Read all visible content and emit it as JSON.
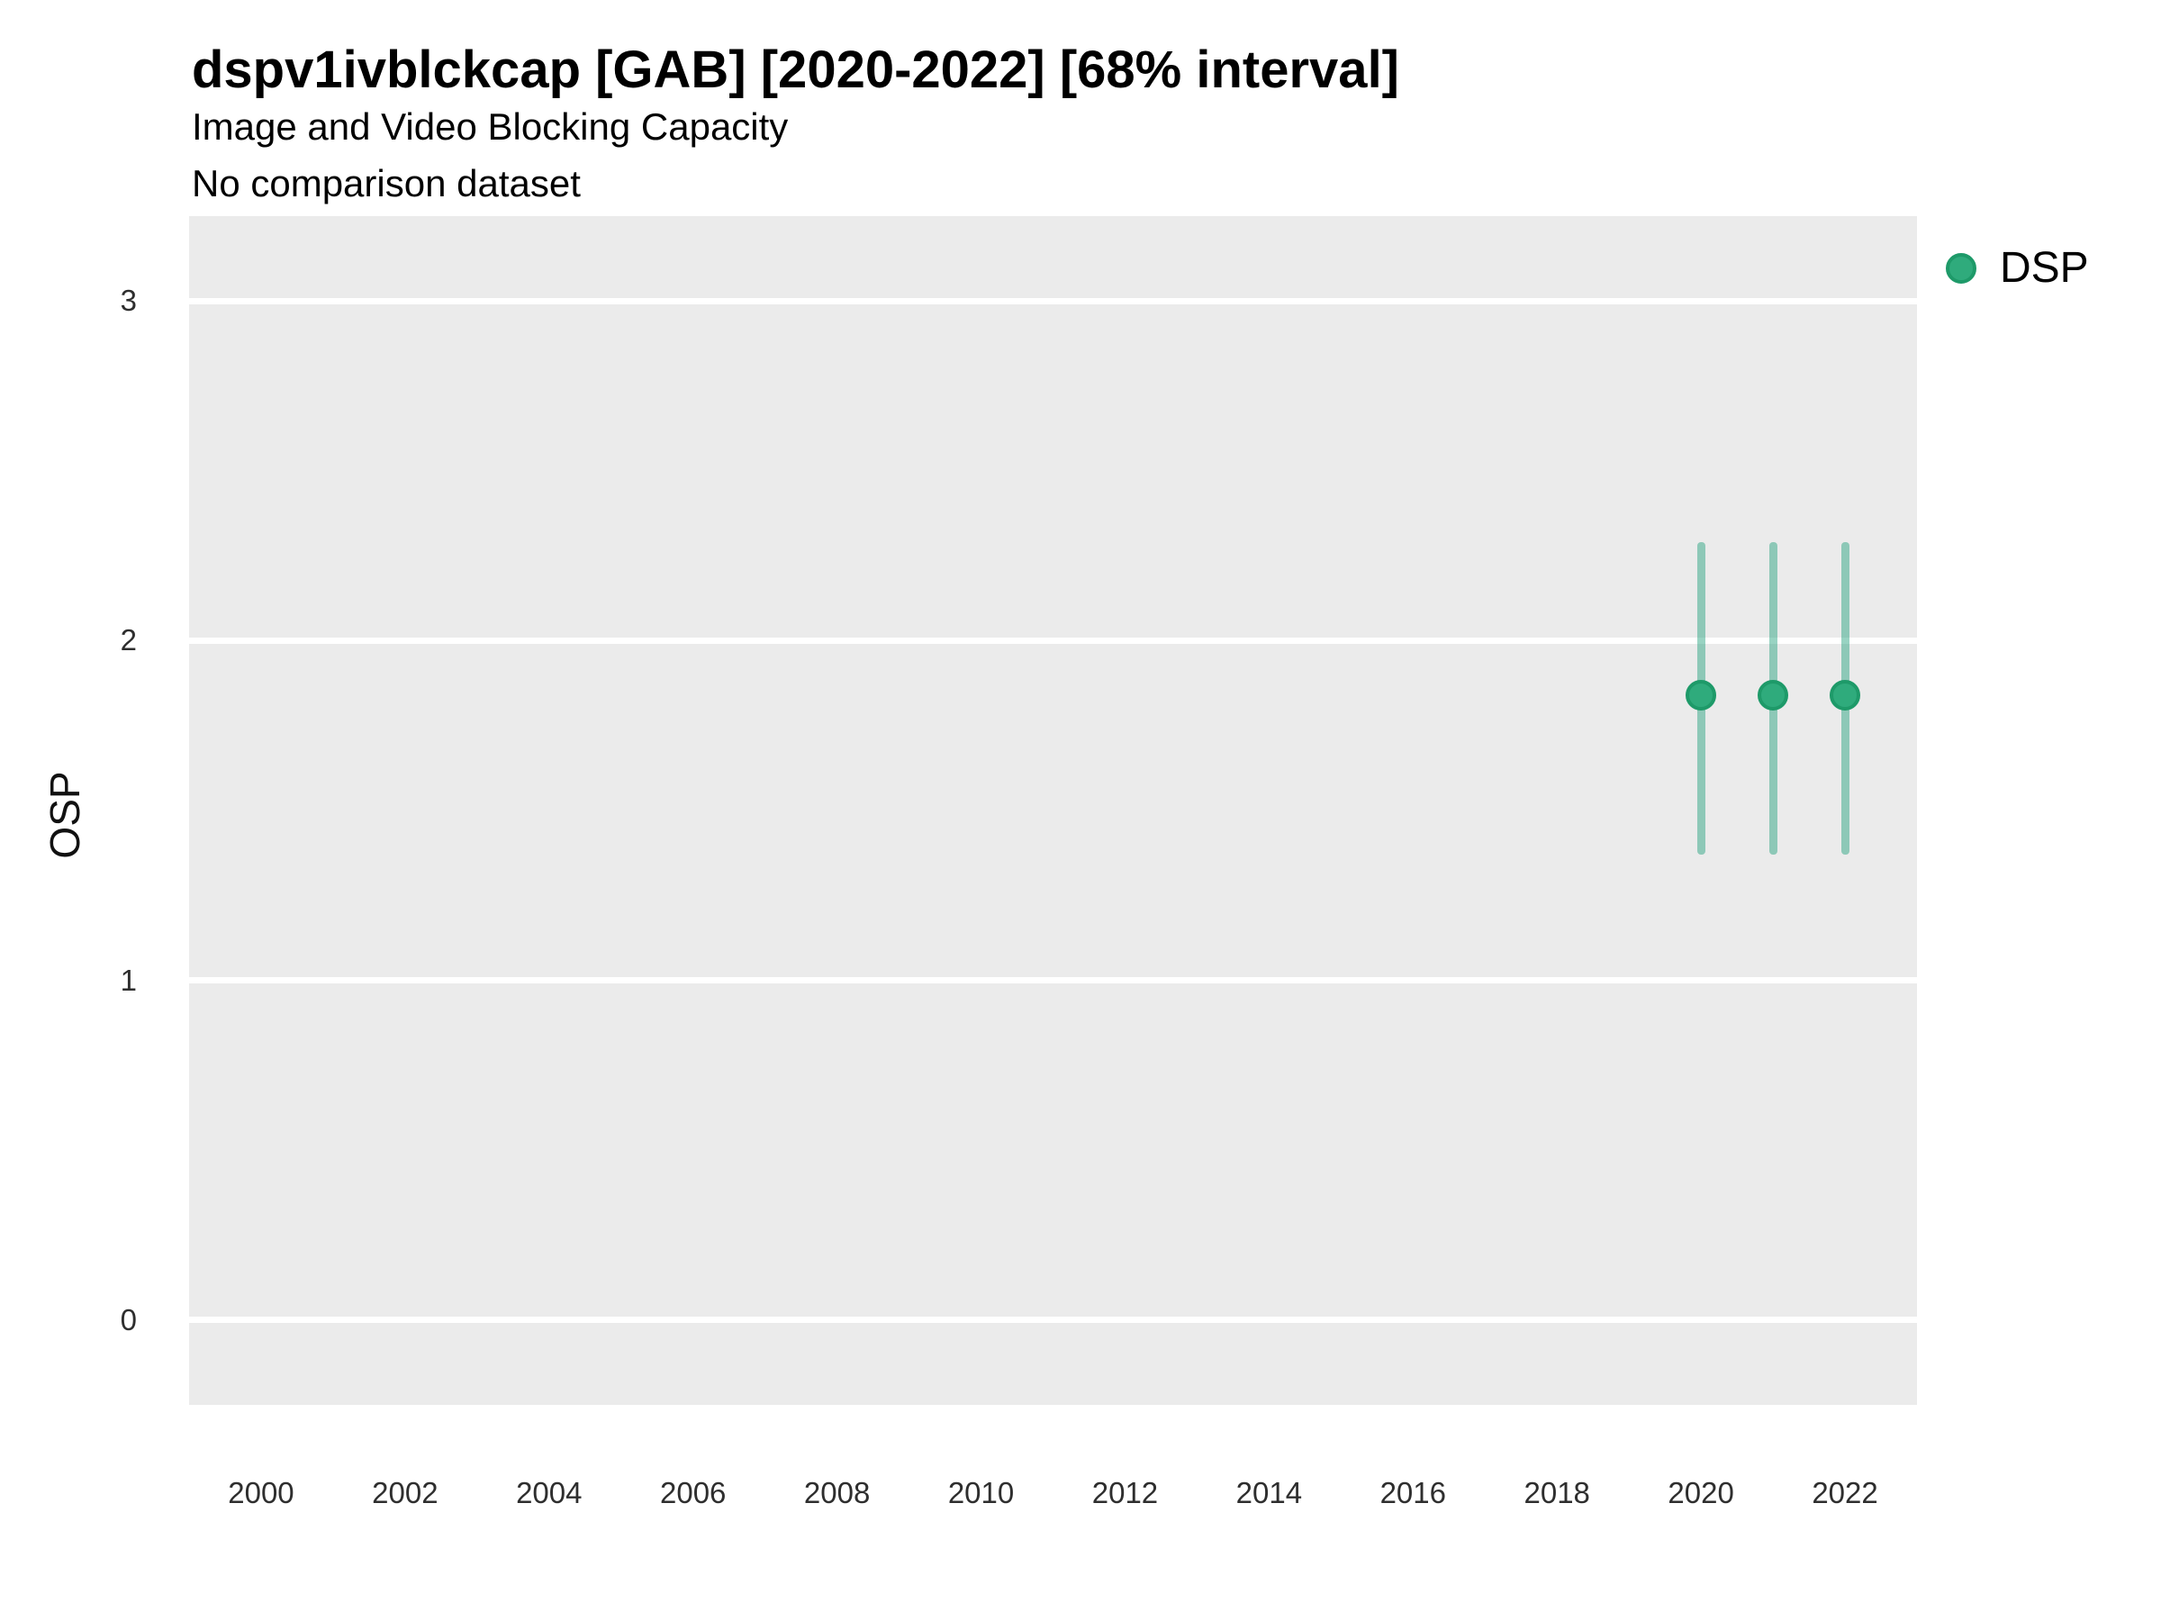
{
  "chart_data": {
    "type": "scatter",
    "title": "dspv1ivblckcap [GAB] [2020-2022] [68% interval]",
    "subtitle": "Image and Video Blocking Capacity",
    "note": "No comparison dataset",
    "xlabel": "",
    "ylabel": "OSP",
    "interval_level": "68%",
    "xlim": [
      1999,
      2023
    ],
    "ylim": [
      -0.25,
      3.25
    ],
    "x_ticks": [
      2000,
      2002,
      2004,
      2006,
      2008,
      2010,
      2012,
      2014,
      2016,
      2018,
      2020,
      2022
    ],
    "y_ticks": [
      0,
      1,
      2,
      3
    ],
    "grid": {
      "horizontal_major": true,
      "vertical": false,
      "color": "#FFFFFF",
      "panel_bg": "#EBEBEB"
    },
    "legend_position": "top-right",
    "series": [
      {
        "name": "DSP",
        "marker": "circle",
        "fill_color": "#2FAB7C",
        "stroke_color": "#1E9A69",
        "interval_color": "rgba(27,158,119,0.45)",
        "points": [
          {
            "x": 2020,
            "y": 1.84,
            "lo": 1.37,
            "hi": 2.29
          },
          {
            "x": 2021,
            "y": 1.84,
            "lo": 1.37,
            "hi": 2.29
          },
          {
            "x": 2022,
            "y": 1.84,
            "lo": 1.37,
            "hi": 2.29
          }
        ]
      }
    ]
  }
}
